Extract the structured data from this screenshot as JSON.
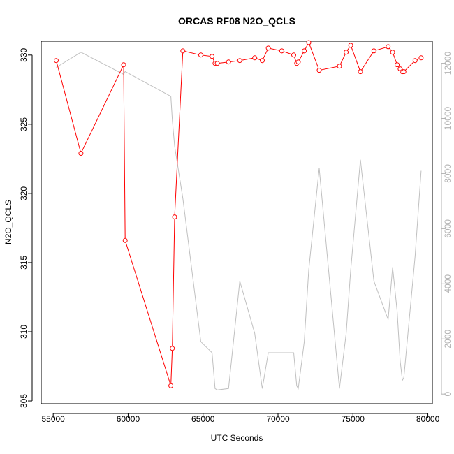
{
  "chart_data": {
    "type": "line",
    "title": "ORCAS RF08 N2O_QCLS",
    "xlabel": "UTC Seconds",
    "ylabel": "N2O_QCLS",
    "xlim": [
      54200,
      80300
    ],
    "ylim": [
      304.8,
      331.0
    ],
    "y2lim": [
      -350,
      12800
    ],
    "x_ticks": [
      55000,
      60000,
      65000,
      70000,
      75000,
      80000
    ],
    "y_ticks": [
      305,
      310,
      315,
      320,
      325,
      330
    ],
    "y2_ticks": [
      0,
      2000,
      4000,
      6000,
      8000,
      10000,
      12000
    ],
    "grid": false,
    "series": [
      {
        "axis": "left",
        "color": "#ff0000",
        "marker": "open-circle",
        "points": [
          [
            55200,
            329.6
          ],
          [
            56850,
            322.9
          ],
          [
            59700,
            329.3
          ],
          [
            59800,
            316.6
          ],
          [
            62850,
            306.1
          ],
          [
            62950,
            308.8
          ],
          [
            63100,
            318.3
          ],
          [
            63650,
            330.3
          ],
          [
            64850,
            330.0
          ],
          [
            65600,
            329.9
          ],
          [
            65800,
            329.4
          ],
          [
            65950,
            329.4
          ],
          [
            66700,
            329.5
          ],
          [
            67450,
            329.6
          ],
          [
            68450,
            329.8
          ],
          [
            68950,
            329.6
          ],
          [
            69350,
            330.5
          ],
          [
            70250,
            330.3
          ],
          [
            71050,
            330.0
          ],
          [
            71250,
            329.4
          ],
          [
            71350,
            329.5
          ],
          [
            71750,
            330.3
          ],
          [
            72050,
            330.9
          ],
          [
            72750,
            328.9
          ],
          [
            74100,
            329.2
          ],
          [
            74550,
            330.2
          ],
          [
            74850,
            330.7
          ],
          [
            75500,
            328.8
          ],
          [
            76400,
            330.3
          ],
          [
            77350,
            330.6
          ],
          [
            77650,
            330.2
          ],
          [
            77950,
            329.3
          ],
          [
            78150,
            329.0
          ],
          [
            78300,
            328.8
          ],
          [
            78400,
            328.8
          ],
          [
            79150,
            329.6
          ],
          [
            79550,
            329.8
          ]
        ]
      },
      {
        "axis": "right",
        "color": "#c0c0c0",
        "marker": "none",
        "points": [
          [
            55200,
            11850
          ],
          [
            56850,
            12400
          ],
          [
            59700,
            11600
          ],
          [
            59800,
            11700
          ],
          [
            62850,
            10800
          ],
          [
            62950,
            9950
          ],
          [
            63100,
            9000
          ],
          [
            63650,
            7100
          ],
          [
            64850,
            1900
          ],
          [
            65600,
            1500
          ],
          [
            65800,
            200
          ],
          [
            65950,
            150
          ],
          [
            66700,
            200
          ],
          [
            67450,
            4100
          ],
          [
            68450,
            2200
          ],
          [
            68950,
            200
          ],
          [
            69350,
            1500
          ],
          [
            70250,
            1500
          ],
          [
            71050,
            1500
          ],
          [
            71250,
            300
          ],
          [
            71350,
            200
          ],
          [
            71750,
            1900
          ],
          [
            72050,
            4500
          ],
          [
            72750,
            8200
          ],
          [
            74100,
            200
          ],
          [
            74550,
            2200
          ],
          [
            74850,
            4500
          ],
          [
            75500,
            8500
          ],
          [
            76400,
            4100
          ],
          [
            77350,
            2700
          ],
          [
            77650,
            4600
          ],
          [
            77950,
            3000
          ],
          [
            78150,
            1200
          ],
          [
            78300,
            500
          ],
          [
            78400,
            600
          ],
          [
            79150,
            5000
          ],
          [
            79550,
            8100
          ]
        ]
      }
    ]
  }
}
